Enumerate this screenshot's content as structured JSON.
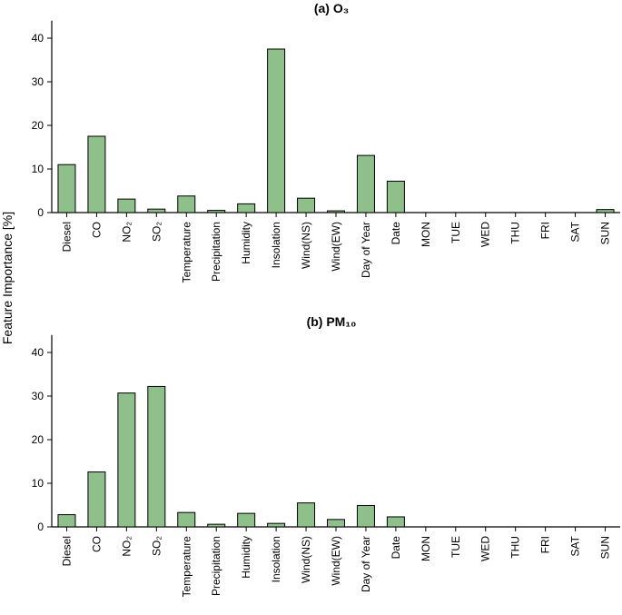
{
  "ylabel": "Feature Importance [%]",
  "colors": {
    "bar_fill": "#8fbf8a",
    "bar_stroke": "#000000"
  },
  "chart_data": [
    {
      "type": "bar",
      "title": "(a) O₃",
      "categories": [
        "Diesel",
        "CO",
        "NO₂",
        "SO₂",
        "Temperature",
        "Precipitation",
        "Humidity",
        "Insolation",
        "Wind(NS)",
        "Wind(EW)",
        "Day of Year",
        "Date",
        "MON",
        "TUE",
        "WED",
        "THU",
        "FRI",
        "SAT",
        "SUN"
      ],
      "values": [
        11.0,
        17.5,
        3.1,
        0.8,
        3.8,
        0.5,
        2.0,
        37.5,
        3.3,
        0.4,
        13.1,
        7.2,
        0,
        0,
        0,
        0,
        0,
        0,
        0.7
      ],
      "yticks": [
        0,
        10,
        20,
        30,
        40
      ],
      "ylim": [
        0,
        44
      ],
      "ylabel": "Feature Importance [%]"
    },
    {
      "type": "bar",
      "title": "(b) PM₁₀",
      "categories": [
        "Diesel",
        "CO",
        "NO₂",
        "SO₂",
        "Temperature",
        "Precipitation",
        "Humidity",
        "Insolation",
        "Wind(NS)",
        "Wind(EW)",
        "Day of Year",
        "Date",
        "MON",
        "TUE",
        "WED",
        "THU",
        "FRI",
        "SAT",
        "SUN"
      ],
      "values": [
        2.8,
        12.6,
        30.7,
        32.2,
        3.3,
        0.6,
        3.1,
        0.8,
        5.5,
        1.7,
        4.9,
        2.3,
        0,
        0,
        0,
        0,
        0,
        0,
        0
      ],
      "yticks": [
        0,
        10,
        20,
        30,
        40
      ],
      "ylim": [
        0,
        44
      ],
      "ylabel": "Feature Importance [%]"
    }
  ]
}
